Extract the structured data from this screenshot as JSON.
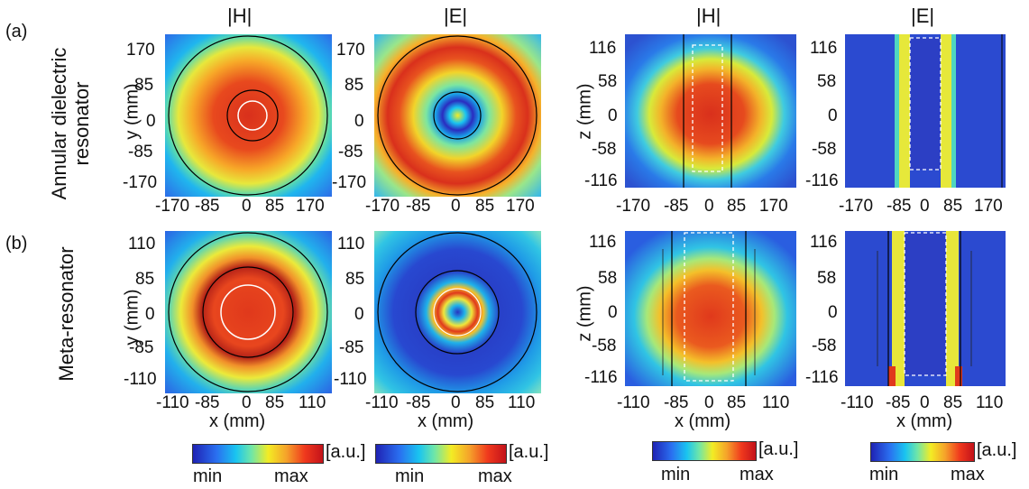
{
  "panel_labels": [
    "(a)",
    "(b)"
  ],
  "row_titles": {
    "a": [
      "Annular dielectric",
      "resonator"
    ],
    "b": "Meta-resonator"
  },
  "column_titles": [
    "|H|",
    "|E|",
    "|H|",
    "|E|"
  ],
  "row_a": {
    "xy_ticks": [
      "-170",
      "-85",
      "0",
      "85",
      "170"
    ],
    "z_ticks": [
      "116",
      "58",
      "0",
      "-58",
      "-116"
    ]
  },
  "row_b": {
    "xy_ticks": [
      "110",
      "85",
      "0",
      "-85",
      "-110"
    ],
    "x_ticks": [
      "-110",
      "-85",
      "0",
      "85",
      "110"
    ],
    "z_ticks": [
      "116",
      "58",
      "0",
      "-58",
      "-116"
    ]
  },
  "axis_labels": {
    "y": "y (mm)",
    "z": "z (mm)",
    "x": "x (mm)"
  },
  "colorbar": {
    "unit": "[a.u.]",
    "min": "min",
    "max": "max"
  },
  "colors": {
    "field_min": "#1f22b4",
    "field_max": "#c3121a",
    "boundary": "#000000",
    "inner_marker": "#ffffff"
  }
}
